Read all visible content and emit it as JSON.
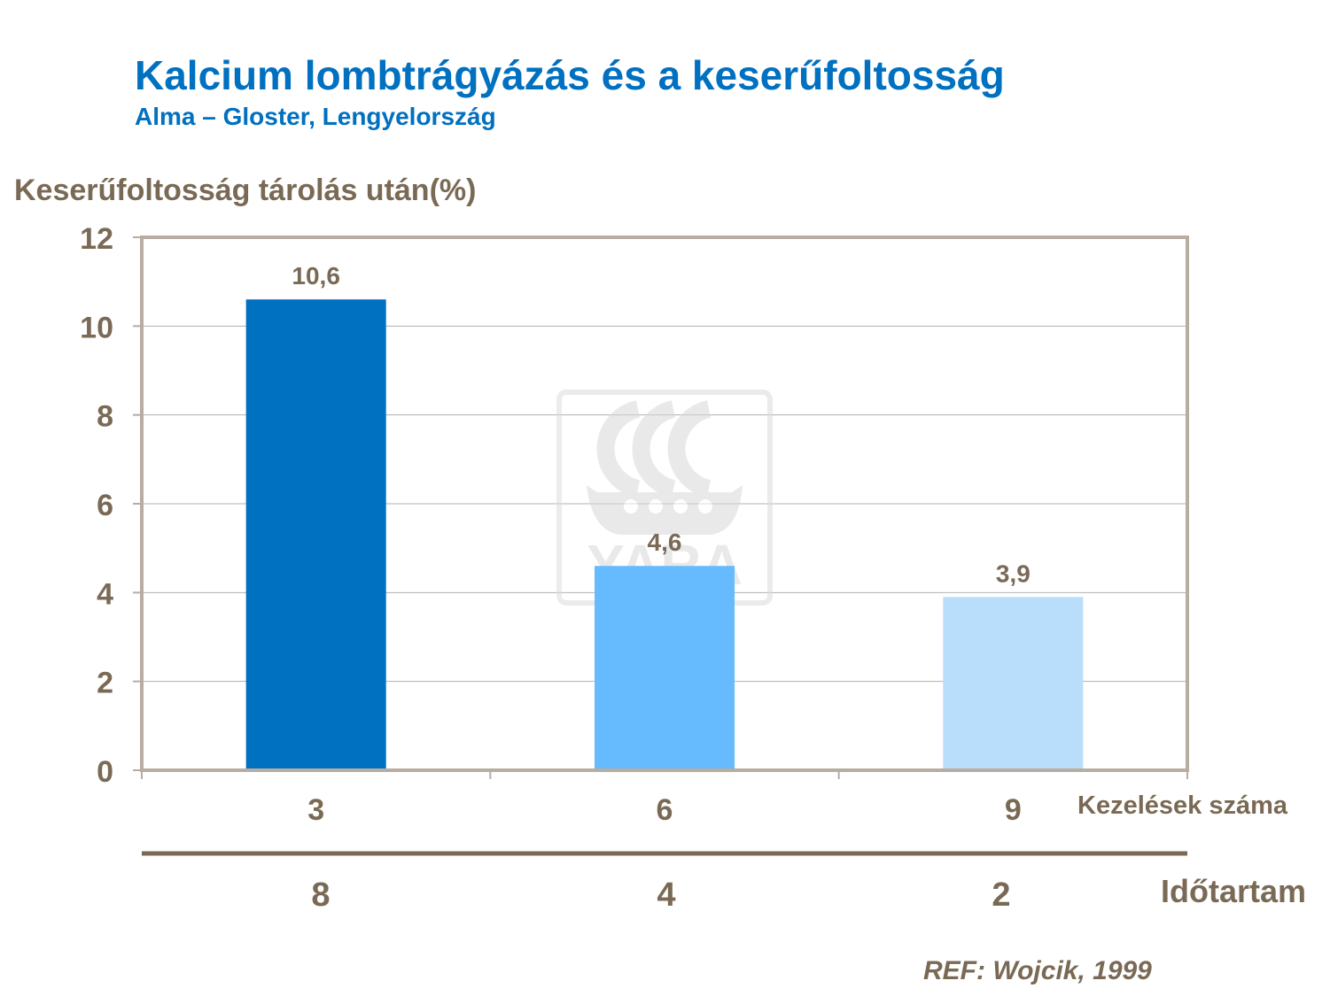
{
  "chart_data": {
    "type": "bar",
    "title": "Kalcium lombtrágyázás és a keserűfoltosság",
    "subtitle": "Alma – Gloster, Lengyelország",
    "ylabel": "Keserűfoltosság tárolás után(%)",
    "xlabel": "Kezelések száma",
    "categories": [
      "3",
      "6",
      "9"
    ],
    "values": [
      10.6,
      4.6,
      3.9
    ],
    "value_labels": [
      "10,6",
      "4,6",
      "3,9"
    ],
    "bar_colors": [
      "#0070c0",
      "#66bbff",
      "#b8defc"
    ],
    "ylim": [
      0,
      12
    ],
    "yticks": [
      "0",
      "2",
      "4",
      "6",
      "8",
      "10",
      "12"
    ],
    "grid": true,
    "secondary_axis": {
      "label": "Időtartam",
      "values": [
        "8",
        "4",
        "2"
      ]
    }
  },
  "watermark": {
    "text": "YARA"
  },
  "reference": "REF: Wojcik, 1999",
  "colors": {
    "title": "#0070c0",
    "text": "#7a6a55",
    "frame": "#b7ada1",
    "grid": "#b0b0b0"
  }
}
